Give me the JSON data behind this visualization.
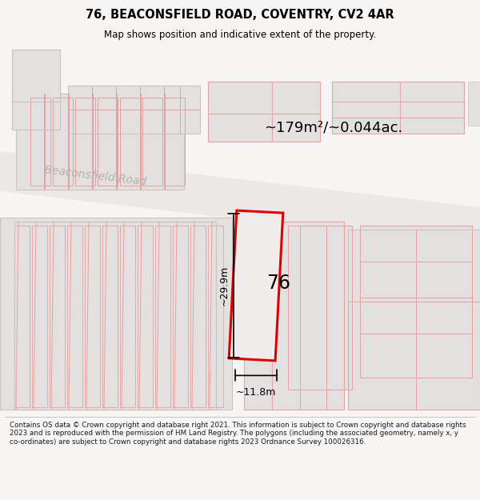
{
  "title_line1": "76, BEACONSFIELD ROAD, COVENTRY, CV2 4AR",
  "title_line2": "Map shows position and indicative extent of the property.",
  "footer_text": "Contains OS data © Crown copyright and database right 2021. This information is subject to Crown copyright and database rights 2023 and is reproduced with the permission of HM Land Registry. The polygons (including the associated geometry, namely x, y co-ordinates) are subject to Crown copyright and database rights 2023 Ordnance Survey 100026316.",
  "area_label": "~179m²/~0.044ac.",
  "road_label": "Beaconsfield Road",
  "dim_vertical": "~29.9m",
  "dim_horizontal": "~11.8m",
  "number_label": "76",
  "map_bg": "#f7f4f4",
  "bld_fill": "#e4e0e0",
  "bld_edge_gray": "#c8c4c4",
  "bld_edge_pink": "#e8a0a0",
  "highlight_fill": "#f0ecec",
  "highlight_edge": "#dd0000",
  "road_fill": "#ede8e8",
  "road_label_color": "#b8b0b0",
  "fig_bg": "#f7f4f4"
}
